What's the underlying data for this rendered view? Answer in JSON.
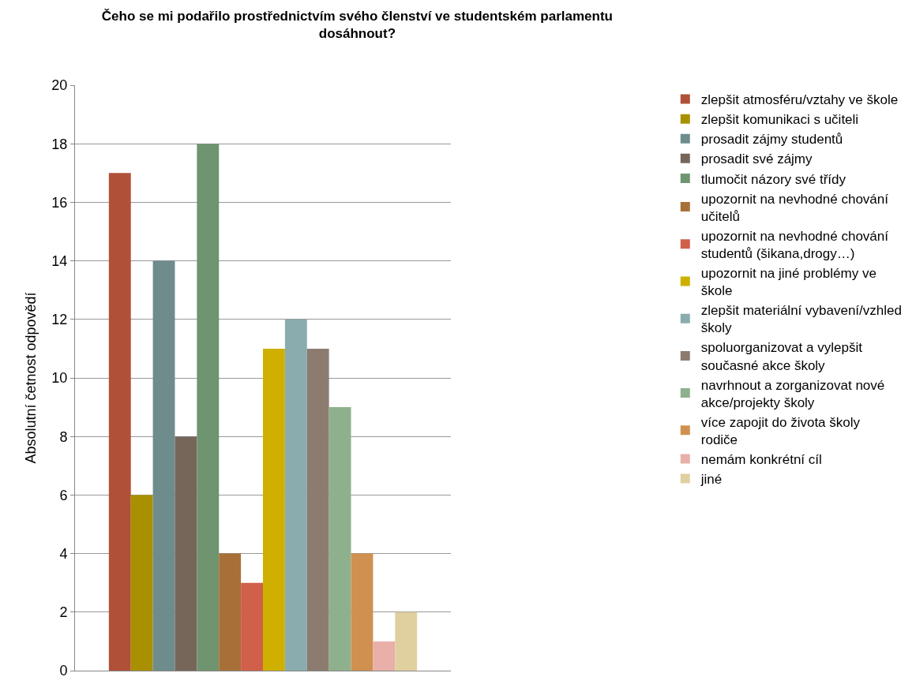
{
  "chart_data": {
    "type": "bar",
    "title": "Čeho se mi podařilo prostřednictvím svého členství ve studentském parlamentu dosáhnout?",
    "ylabel": "Absolutní četnost odpovědí",
    "categories": [
      null
    ],
    "ylim": [
      0,
      20
    ],
    "yticks": [
      0,
      2,
      4,
      6,
      8,
      10,
      12,
      14,
      16,
      18,
      20
    ],
    "grid": "y",
    "legend": "right",
    "series": [
      {
        "name": "zlepšit atmosféru/vztahy ve škole",
        "color": "#b05038",
        "values": [
          17
        ]
      },
      {
        "name": "zlepšit komunikaci s učiteli",
        "color": "#a89000",
        "values": [
          6
        ]
      },
      {
        "name": "prosadit zájmy studentů",
        "color": "#6f8c8c",
        "values": [
          14
        ]
      },
      {
        "name": "prosadit své zájmy",
        "color": "#76665a",
        "values": [
          8
        ]
      },
      {
        "name": "tlumočit názory své třídy",
        "color": "#6f9470",
        "values": [
          18
        ]
      },
      {
        "name": "upozornit na nevhodné chování učitelů",
        "color": "#a87038",
        "values": [
          4
        ]
      },
      {
        "name": "upozornit na nevhodné chování studentů (šikana,drogy…)",
        "color": "#d0604a",
        "values": [
          3
        ]
      },
      {
        "name": "upozornit na jiné problémy ve škole",
        "color": "#cfb000",
        "values": [
          11
        ]
      },
      {
        "name": "zlepšit materiální vybavení/vzhled školy",
        "color": "#8aacae",
        "values": [
          12
        ]
      },
      {
        "name": "spoluorganizovat a vylepšit současné akce školy",
        "color": "#8c7c70",
        "values": [
          11
        ]
      },
      {
        "name": "navrhnout a zorganizovat nové akce/projekty školy",
        "color": "#8fb08c",
        "values": [
          9
        ]
      },
      {
        "name": "více zapojit do života školy rodiče",
        "color": "#d09050",
        "values": [
          4
        ]
      },
      {
        "name": "nemám konkrétní cíl",
        "color": "#e8b0a8",
        "values": [
          1
        ]
      },
      {
        "name": "jiné",
        "color": "#e0d0a0",
        "values": [
          2
        ]
      }
    ]
  }
}
